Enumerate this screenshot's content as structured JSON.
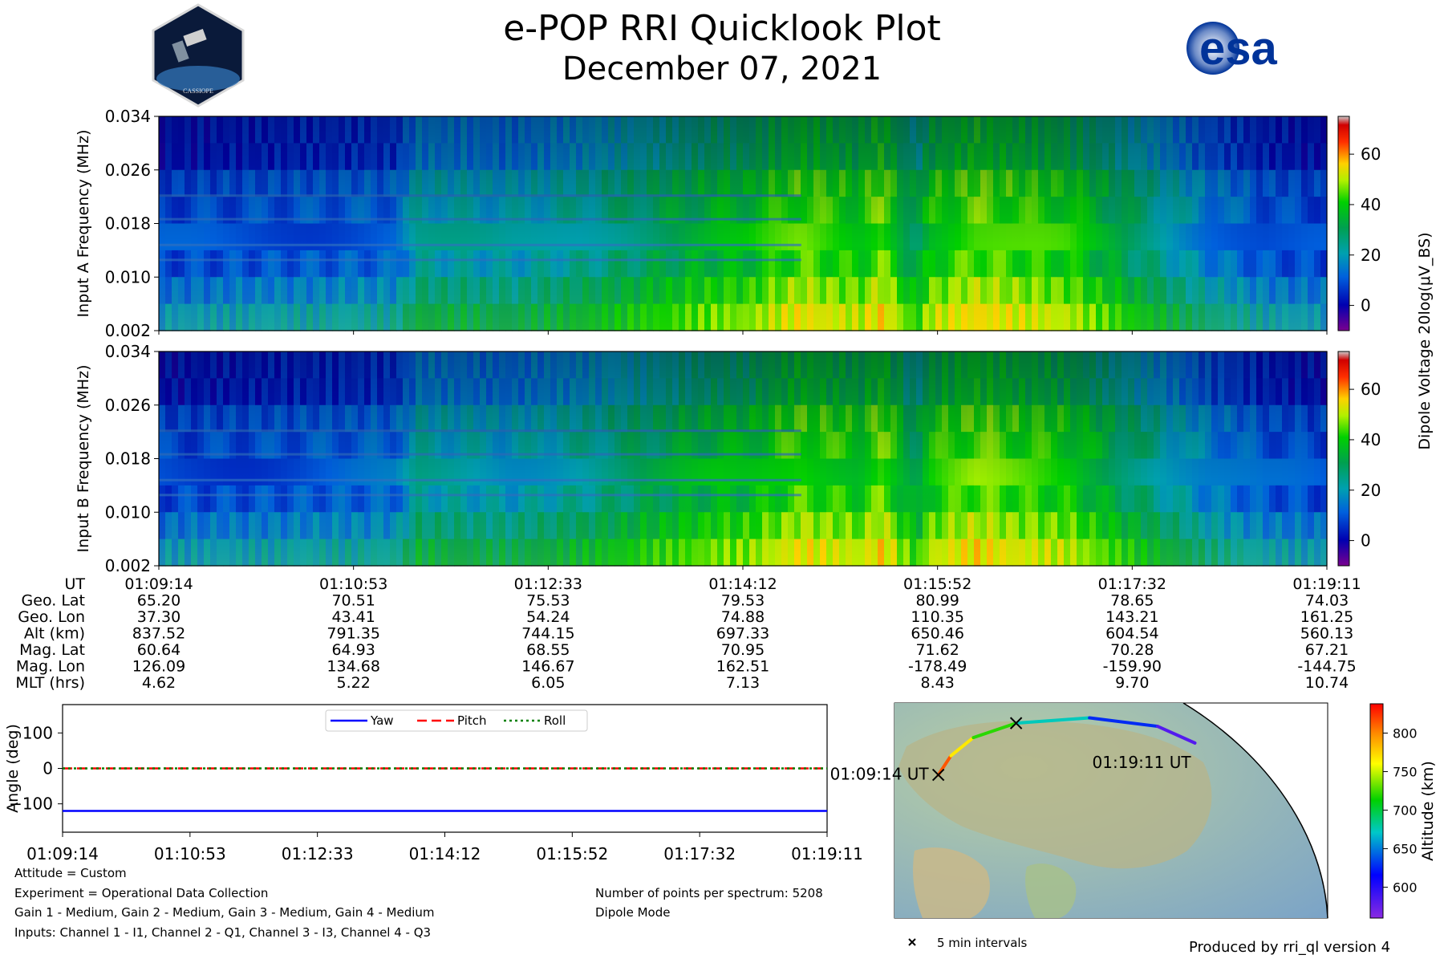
{
  "header": {
    "title": "e-POP RRI Quicklook Plot",
    "date": "December 07, 2021",
    "logo_left_text": "CASSIOPE",
    "logo_right_text": "esa"
  },
  "colors": {
    "yaw": "#0000ff",
    "pitch": "#ff0000",
    "roll": "#008000"
  },
  "chart_data": [
    {
      "type": "heatmap",
      "name": "input-a-spectrogram",
      "ylabel": "Input A Frequency (MHz)",
      "yticks": [
        "0.002",
        "0.010",
        "0.018",
        "0.026",
        "0.034"
      ],
      "ylim": [
        0.002,
        0.034
      ],
      "colorbar_label": "Dipole Voltage 20log(μV_BS)",
      "colorbar_ticks": [
        "0",
        "20",
        "40",
        "60"
      ],
      "colorbar_range": [
        -10,
        75
      ],
      "colormap": "nipy_spectral"
    },
    {
      "type": "heatmap",
      "name": "input-b-spectrogram",
      "ylabel": "Input B Frequency (MHz)",
      "yticks": [
        "0.002",
        "0.010",
        "0.018",
        "0.026",
        "0.034"
      ],
      "ylim": [
        0.002,
        0.034
      ],
      "colorbar_ticks": [
        "0",
        "20",
        "40",
        "60"
      ],
      "colorbar_range": [
        -10,
        75
      ],
      "colormap": "nipy_spectral"
    },
    {
      "type": "table",
      "name": "orbit-parameters",
      "row_labels": [
        "UT",
        "Geo. Lat",
        "Geo. Lon",
        "Alt (km)",
        "Mag. Lat",
        "Mag. Lon",
        "MLT (hrs)"
      ],
      "columns": [
        [
          "01:09:14",
          "65.20",
          "37.30",
          "837.52",
          "60.64",
          "126.09",
          "4.62"
        ],
        [
          "01:10:53",
          "70.51",
          "43.41",
          "791.35",
          "64.93",
          "134.68",
          "5.22"
        ],
        [
          "01:12:33",
          "75.53",
          "54.24",
          "744.15",
          "68.55",
          "146.67",
          "6.05"
        ],
        [
          "01:14:12",
          "79.53",
          "74.88",
          "697.33",
          "70.95",
          "162.51",
          "7.13"
        ],
        [
          "01:15:52",
          "80.99",
          "110.35",
          "650.46",
          "71.62",
          "-178.49",
          "8.43"
        ],
        [
          "01:17:32",
          "78.65",
          "143.21",
          "604.54",
          "70.28",
          "-159.90",
          "9.70"
        ],
        [
          "01:19:11",
          "74.03",
          "161.25",
          "560.13",
          "67.21",
          "-144.75",
          "10.74"
        ]
      ]
    },
    {
      "type": "line",
      "name": "attitude",
      "ylabel": "Angle (deg)",
      "ylim": [
        -180,
        180
      ],
      "yticks": [
        "100",
        "0",
        "−100"
      ],
      "ytick_values": [
        100,
        0,
        -100
      ],
      "x_labels": [
        "01:09:14",
        "01:10:53",
        "01:12:33",
        "01:14:12",
        "01:15:52",
        "01:17:32",
        "01:19:11"
      ],
      "legend_position": "top-center",
      "series": [
        {
          "name": "Yaw",
          "values": [
            -120,
            -120,
            -120,
            -120,
            -120,
            -120,
            -120
          ],
          "style": "solid"
        },
        {
          "name": "Pitch",
          "values": [
            0,
            0,
            0,
            0,
            0,
            0,
            0
          ],
          "style": "dashed"
        },
        {
          "name": "Roll",
          "values": [
            0,
            0,
            0,
            0,
            0,
            0,
            0
          ],
          "style": "dotted"
        }
      ]
    },
    {
      "type": "scatter",
      "name": "ground-track-map",
      "start_label": "01:09:14 UT",
      "end_label": "01:19:11 UT",
      "marker_legend": "5 min intervals",
      "colorbar_label": "Altitude (km)",
      "colorbar_ticks": [
        "600",
        "650",
        "700",
        "750",
        "800"
      ],
      "colorbar_range": [
        560,
        838
      ],
      "track": [
        {
          "lat": 65.2,
          "lon": 37.3,
          "alt": 837.52
        },
        {
          "lat": 70.51,
          "lon": 43.41,
          "alt": 791.35
        },
        {
          "lat": 75.53,
          "lon": 54.24,
          "alt": 744.15
        },
        {
          "lat": 79.53,
          "lon": 74.88,
          "alt": 697.33
        },
        {
          "lat": 80.99,
          "lon": 110.35,
          "alt": 650.46
        },
        {
          "lat": 78.65,
          "lon": 143.21,
          "alt": 604.54
        },
        {
          "lat": 74.03,
          "lon": 161.25,
          "alt": 560.13
        }
      ]
    }
  ],
  "info": {
    "attitude": "Attitude = Custom",
    "experiment": "Experiment = Operational Data Collection",
    "gains": "Gain 1 - Medium, Gain 2 - Medium, Gain 3 - Medium, Gain 4 - Medium",
    "inputs": "Inputs: Channel 1 - I1, Channel 2 - Q1, Channel 3 - I3, Channel 4 - Q3",
    "points": "Number of points per spectrum: 5208",
    "mode": "Dipole Mode",
    "produced_by": "Produced by rri_ql version 4"
  }
}
